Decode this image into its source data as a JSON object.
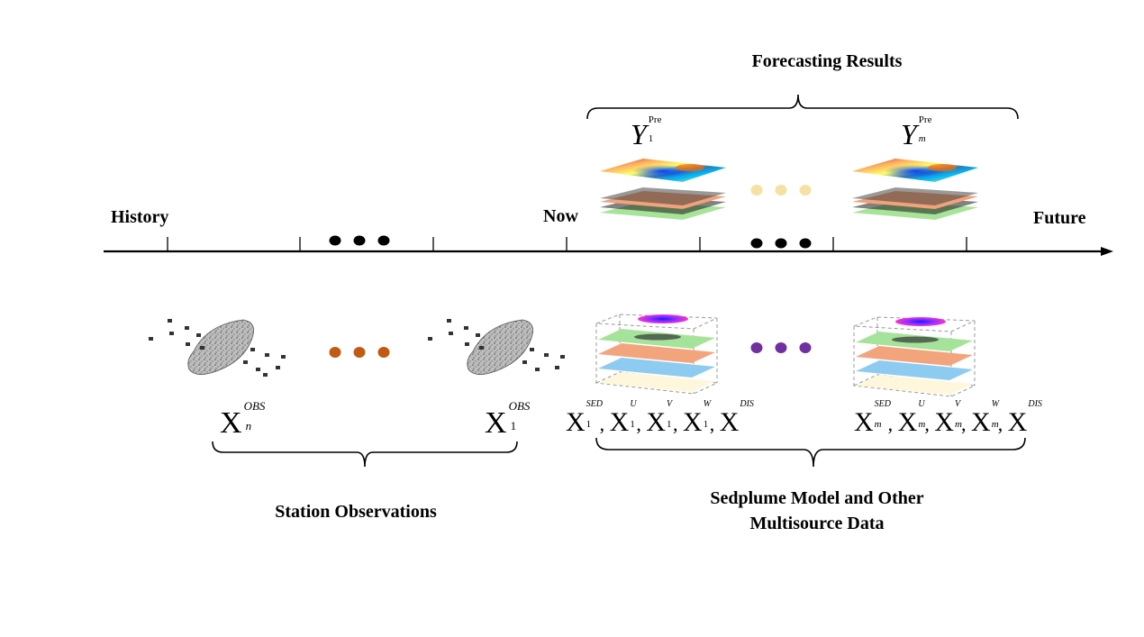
{
  "title": "Forecasting Results",
  "timeline": {
    "history": "History",
    "now": "Now",
    "future": "Future"
  },
  "groups": {
    "station": "Station Observations",
    "sedplume_line1": "Sedplume Model and Other",
    "sedplume_line2": "Multisource Data"
  },
  "symbols": {
    "y_first": {
      "base": "Y",
      "sup": "Pre",
      "sub": "1"
    },
    "y_last": {
      "base": "Y",
      "sup": "Pre",
      "sub": "m"
    },
    "x_obs_n": {
      "base": "X",
      "sup": "OBS",
      "sub": "n"
    },
    "x_obs_1": {
      "base": "X",
      "sup": "OBS",
      "sub": "1"
    },
    "multisource_1": {
      "base": "X",
      "subscript": "1",
      "items": [
        "SED",
        "U",
        "V",
        "W",
        "DIS"
      ]
    },
    "multisource_m": {
      "base": "X",
      "subscript": "m",
      "items": [
        "SED",
        "U",
        "V",
        "W",
        "DIS"
      ]
    }
  },
  "colors": {
    "timeline_dots": "#000000",
    "forecast_dots": "#f7e0a3",
    "station_dots": "#c25a12",
    "model_dots": "#7030a0"
  }
}
